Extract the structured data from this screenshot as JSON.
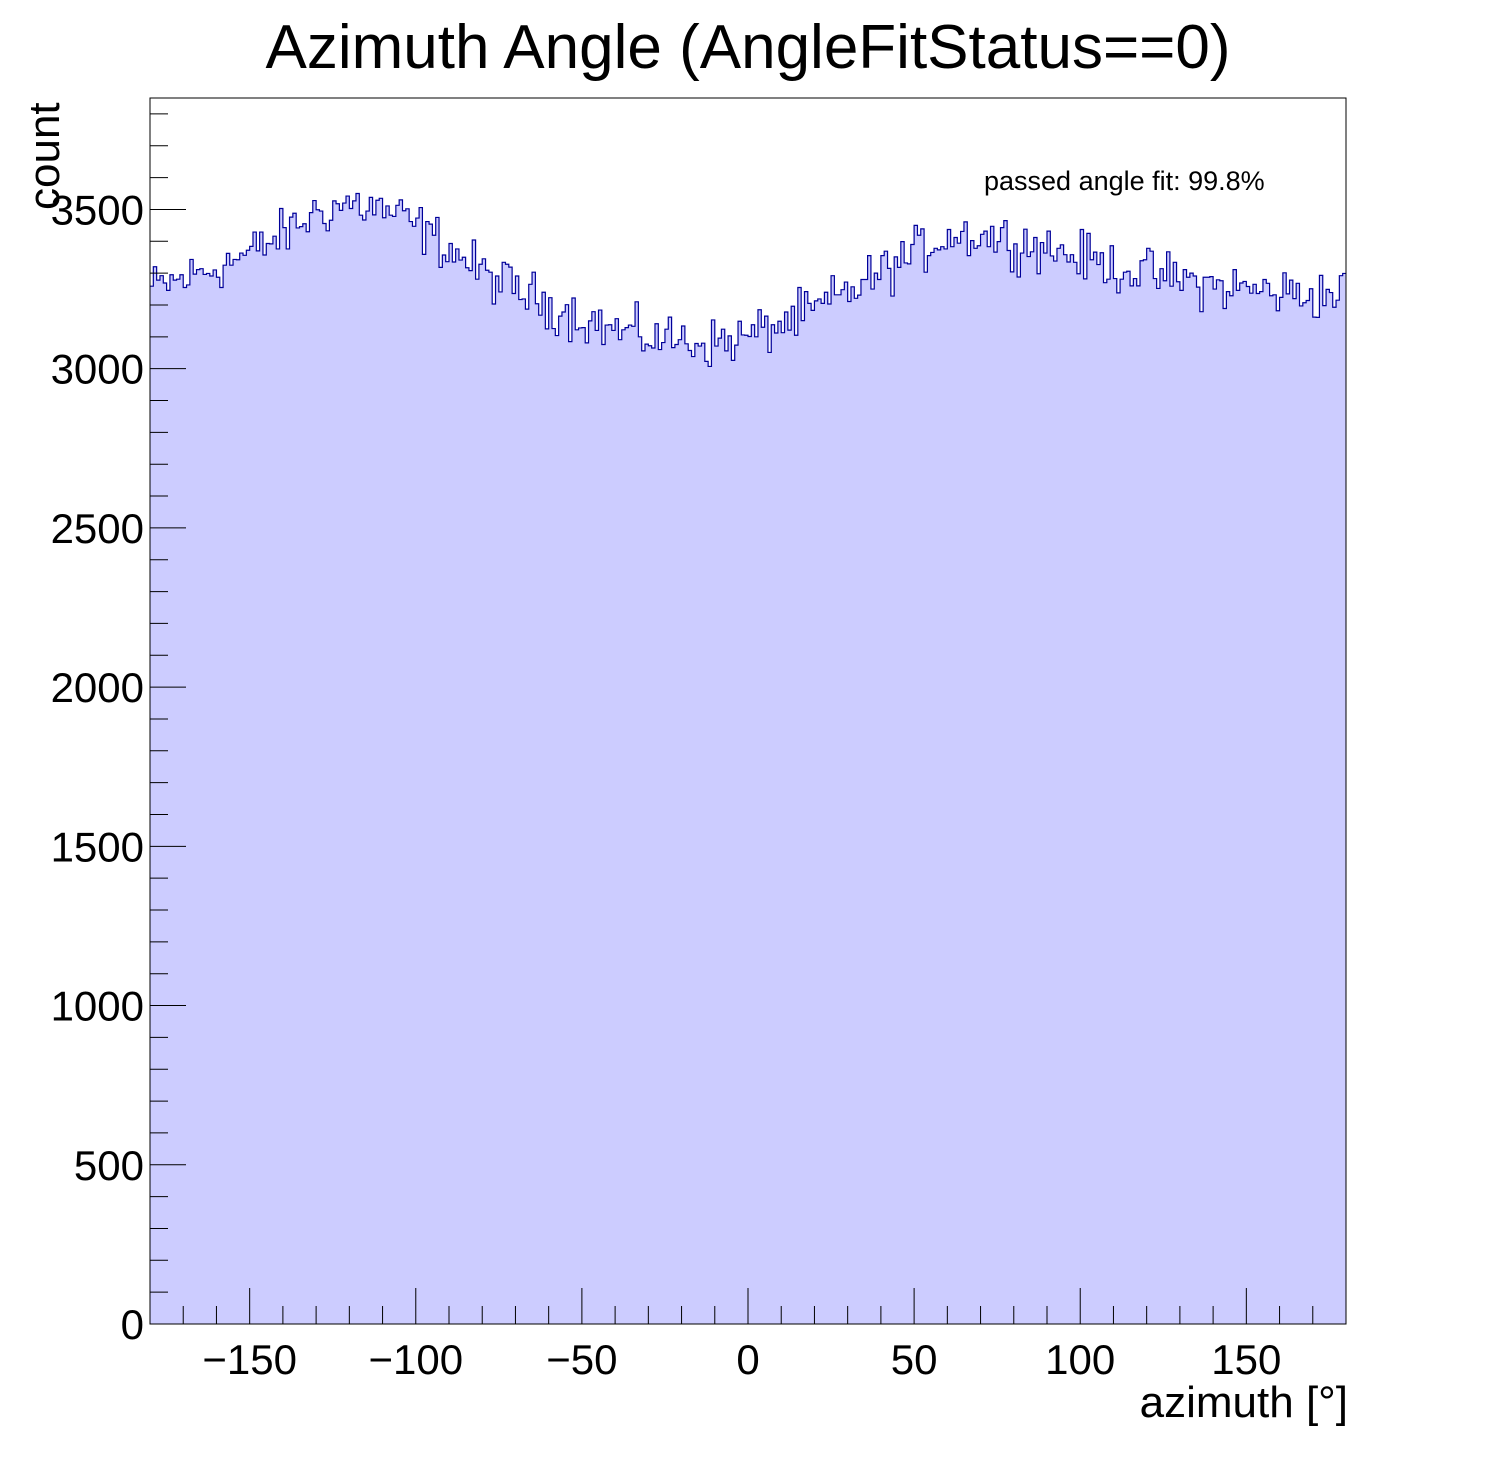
{
  "chart_data": {
    "type": "histogram",
    "title": "Azimuth Angle (AngleFitStatus==0)",
    "xlabel": "azimuth [°]",
    "ylabel": "count",
    "annotation": "passed angle fit: 99.8%",
    "xlim": [
      -180,
      180
    ],
    "ylim": [
      0,
      3850
    ],
    "x_ticks": [
      -150,
      -100,
      -50,
      0,
      50,
      100,
      150
    ],
    "x_tick_labels": [
      "−150",
      "−100",
      "−50",
      "0",
      "50",
      "100",
      "150"
    ],
    "y_ticks": [
      0,
      500,
      1000,
      1500,
      2000,
      2500,
      3000,
      3500
    ],
    "y_tick_labels": [
      "0",
      "500",
      "1000",
      "1500",
      "2000",
      "2500",
      "3000",
      "3500"
    ],
    "bin_count": 360,
    "bin_width": 1,
    "trend": {
      "x": [
        -180,
        -170,
        -160,
        -150,
        -140,
        -130,
        -120,
        -110,
        -100,
        -90,
        -80,
        -70,
        -60,
        -50,
        -40,
        -30,
        -20,
        -10,
        0,
        10,
        20,
        30,
        40,
        50,
        60,
        70,
        80,
        90,
        100,
        110,
        120,
        130,
        140,
        150,
        160,
        170,
        180
      ],
      "counts": [
        3250,
        3280,
        3320,
        3360,
        3420,
        3490,
        3520,
        3500,
        3450,
        3380,
        3300,
        3250,
        3200,
        3160,
        3120,
        3100,
        3090,
        3080,
        3100,
        3140,
        3180,
        3240,
        3300,
        3360,
        3420,
        3420,
        3400,
        3380,
        3350,
        3320,
        3300,
        3280,
        3260,
        3250,
        3240,
        3230,
        3240
      ]
    },
    "fill_color": "#ccccff",
    "line_color": "#000099",
    "noise_amplitude": 55
  }
}
